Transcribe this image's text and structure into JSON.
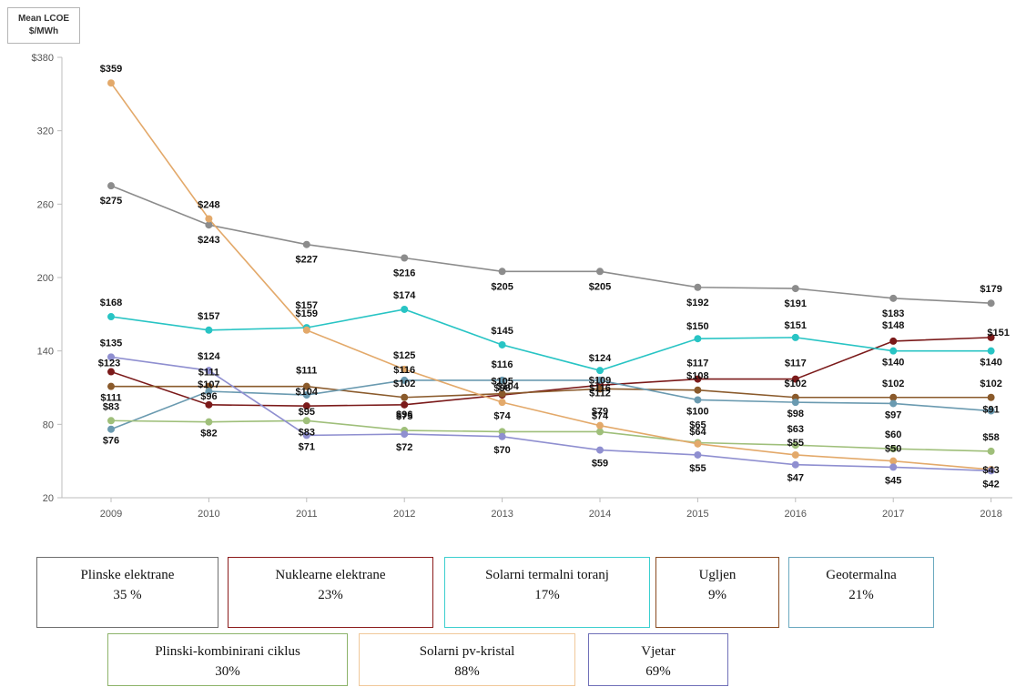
{
  "chart_data": {
    "type": "line",
    "ylabel": "Mean LCOE $/MWh",
    "ylim": [
      20,
      380
    ],
    "yticks": [
      "$380",
      "320",
      "260",
      "200",
      "140",
      "80",
      "20"
    ],
    "ytick_values": [
      380,
      320,
      260,
      200,
      140,
      80,
      20
    ],
    "x": [
      "2009",
      "2010",
      "2011",
      "2012",
      "2013",
      "2014",
      "2015",
      "2016",
      "2017",
      "2018"
    ],
    "grid": false,
    "series": [
      {
        "name": "Plinske elektrane",
        "color": "#8c8c8c",
        "values": [
          275,
          243,
          227,
          216,
          205,
          205,
          192,
          191,
          183,
          179
        ],
        "labels": [
          "$275",
          "$243",
          "$227",
          "$216",
          "$205",
          "$205",
          "$192",
          "$191",
          "$183",
          "$179"
        ]
      },
      {
        "name": "Nuklearne elektrane",
        "color": "#7b1a1a",
        "values": [
          123,
          96,
          95,
          96,
          104,
          112,
          117,
          117,
          148,
          151
        ],
        "labels": [
          "$123",
          "$96",
          "$95",
          "$96",
          "$104",
          "$112",
          "$117",
          "$117",
          "$148",
          "$151"
        ]
      },
      {
        "name": "Solarni termalni toranj",
        "color": "#28c4c4",
        "values": [
          168,
          157,
          159,
          174,
          145,
          124,
          150,
          151,
          140,
          140
        ],
        "labels": [
          "$168",
          "$157",
          "$159",
          "$174",
          "$145",
          "$124",
          "$150",
          "$151",
          "$140",
          "$140"
        ]
      },
      {
        "name": "Ugljen",
        "color": "#8a5a2b",
        "values": [
          111,
          111,
          111,
          102,
          105,
          109,
          108,
          102,
          102,
          102
        ],
        "labels": [
          "$111",
          "$111",
          "$111",
          "$102",
          "$105",
          "$109",
          "$108",
          "$102",
          "$102",
          "$102"
        ]
      },
      {
        "name": "Geotermalna",
        "color": "#6a9ab0",
        "values": [
          76,
          107,
          104,
          116,
          116,
          116,
          100,
          98,
          97,
          91
        ],
        "labels": [
          "$76",
          "$107",
          "$104",
          "$116",
          "$116",
          "$116",
          "$100",
          "$98",
          "$97",
          "$91"
        ]
      },
      {
        "name": "Plinski-kombinirani ciklus",
        "color": "#9fbf7a",
        "values": [
          83,
          82,
          83,
          75,
          74,
          74,
          65,
          63,
          60,
          58
        ],
        "labels": [
          "$83",
          "$82",
          "$83",
          "$75",
          "$74",
          "$74",
          "$65",
          "$63",
          "$60",
          "$58"
        ]
      },
      {
        "name": "Solarni pv-kristal",
        "color": "#e3a96a",
        "values": [
          359,
          248,
          157,
          125,
          98,
          79,
          64,
          55,
          50,
          43
        ],
        "labels": [
          "$359",
          "$248",
          "$157",
          "$125",
          "$98",
          "$79",
          "$64",
          "$55",
          "$50",
          "$43"
        ]
      },
      {
        "name": "Vjetar",
        "color": "#8f8fd0",
        "values": [
          135,
          124,
          71,
          72,
          70,
          59,
          55,
          47,
          45,
          42
        ],
        "labels": [
          "$135",
          "$124",
          "$71",
          "$72",
          "$70",
          "$59",
          "$55",
          "$47",
          "$45",
          "$42"
        ]
      }
    ]
  },
  "legend": [
    {
      "name": "Plinske elektrane",
      "pct": "35 %",
      "color": "#6e6e6e"
    },
    {
      "name": "Nuklearne elektrane",
      "pct": "23%",
      "color": "#8b1a1a"
    },
    {
      "name": "Solarni termalni toranj",
      "pct": "17%",
      "color": "#3ccfcf"
    },
    {
      "name": "Ugljen",
      "pct": "9%",
      "color": "#8a4a1f"
    },
    {
      "name": "Geotermalna",
      "pct": "21%",
      "color": "#6aa9bf"
    },
    {
      "name": "Plinski-kombinirani  ciklus",
      "pct": "30%",
      "color": "#8db36a"
    },
    {
      "name": "Solarni pv-kristal",
      "pct": "88%",
      "color": "#f0c89a"
    },
    {
      "name": "Vjetar",
      "pct": "69%",
      "color": "#7070b8"
    }
  ]
}
